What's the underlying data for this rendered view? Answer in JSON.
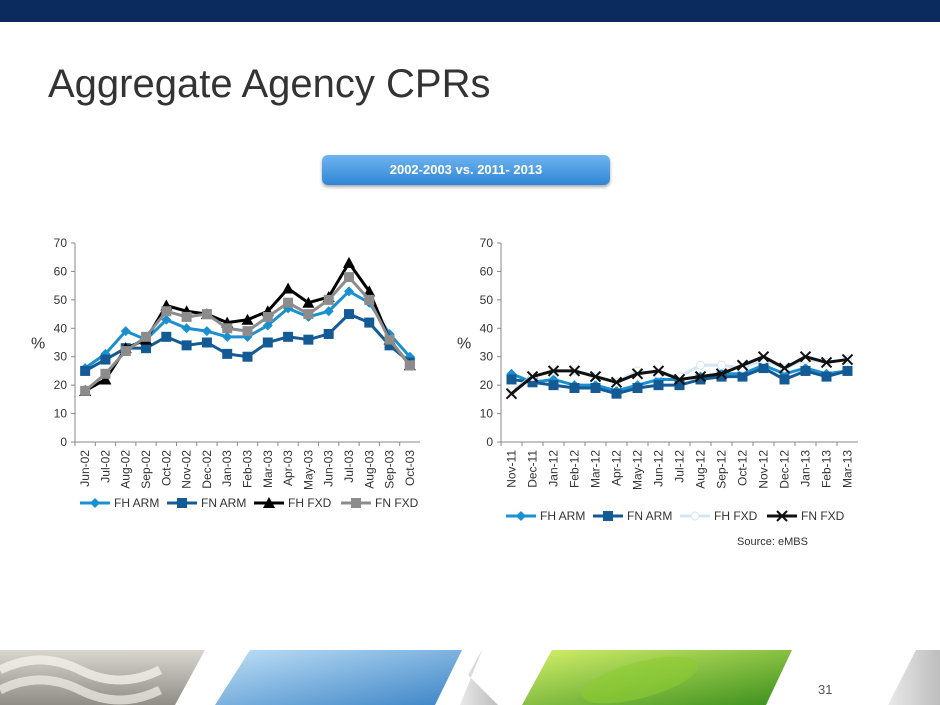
{
  "slide": {
    "title": "Aggregate Agency CPRs",
    "subtitle_badge": "2002-2003 vs. 2011- 2013",
    "source": "Source: eMBS",
    "page_number": "31"
  },
  "colors": {
    "header_bar": "#0b2a5e",
    "FH ARM": "#1a90d0",
    "FN ARM": "#145a94",
    "FH FXD": "#000000",
    "FN FXD": "#8c8c8c",
    "FN FXD_right": "#111111",
    "FH FXD_right": "#d4e6f4"
  },
  "chart_data": [
    {
      "type": "line",
      "title": "",
      "ylabel": "%",
      "xlabel": "",
      "ylim": [
        0,
        70
      ],
      "yticks": [
        0,
        10,
        20,
        30,
        40,
        50,
        60,
        70
      ],
      "grid": false,
      "legend": "bottom",
      "categories": [
        "Jun-02",
        "Jul-02",
        "Aug-02",
        "Sep-02",
        "Oct-02",
        "Nov-02",
        "Dec-02",
        "Jan-03",
        "Feb-03",
        "Mar-03",
        "Apr-03",
        "May-03",
        "Jun-03",
        "Jul-03",
        "Aug-03",
        "Sep-03",
        "Oct-03"
      ],
      "series": [
        {
          "name": "FH ARM",
          "marker": "diamond",
          "values": [
            26,
            31,
            39,
            36,
            43,
            40,
            39,
            37,
            37,
            41,
            47,
            44,
            46,
            53,
            49,
            38,
            30
          ]
        },
        {
          "name": "FN ARM",
          "marker": "square",
          "values": [
            25,
            29,
            33,
            33,
            37,
            34,
            35,
            31,
            30,
            35,
            37,
            36,
            38,
            45,
            42,
            34,
            28
          ]
        },
        {
          "name": "FH FXD",
          "marker": "triangle",
          "values": [
            18,
            22,
            33,
            36,
            48,
            46,
            45,
            42,
            43,
            46,
            54,
            49,
            51,
            63,
            53,
            36,
            27
          ]
        },
        {
          "name": "FN FXD",
          "marker": "square",
          "values": [
            18,
            24,
            32,
            37,
            46,
            44,
            45,
            40,
            39,
            44,
            49,
            45,
            50,
            58,
            50,
            36,
            27
          ]
        }
      ]
    },
    {
      "type": "line",
      "title": "",
      "ylabel": "%",
      "xlabel": "",
      "ylim": [
        0,
        70
      ],
      "yticks": [
        0,
        10,
        20,
        30,
        40,
        50,
        60,
        70
      ],
      "grid": false,
      "legend": "bottom",
      "categories": [
        "Nov-11",
        "Dec-11",
        "Jan-12",
        "Feb-12",
        "Mar-12",
        "Apr-12",
        "May-12",
        "Jun-12",
        "Jul-12",
        "Aug-12",
        "Sep-12",
        "Oct-12",
        "Nov-12",
        "Dec-12",
        "Jan-13",
        "Feb-13",
        "Mar-13"
      ],
      "series": [
        {
          "name": "FH ARM",
          "marker": "diamond",
          "values": [
            24,
            21,
            22,
            20,
            20,
            18,
            20,
            22,
            22,
            23,
            24,
            24,
            27,
            24,
            26,
            24,
            25
          ]
        },
        {
          "name": "FN ARM",
          "marker": "square",
          "values": [
            22,
            21,
            20,
            19,
            19,
            17,
            19,
            20,
            20,
            22,
            23,
            23,
            26,
            22,
            25,
            23,
            25
          ]
        },
        {
          "name": "FH FXD",
          "marker": "circle",
          "values": [
            18,
            23,
            25,
            25,
            23,
            21,
            25,
            24,
            23,
            27,
            27,
            26,
            29,
            26,
            29,
            28,
            29
          ]
        },
        {
          "name": "FN FXD",
          "marker": "x",
          "values": [
            17,
            23,
            25,
            25,
            23,
            21,
            24,
            25,
            22,
            23,
            24,
            27,
            30,
            26,
            30,
            28,
            29
          ]
        }
      ]
    }
  ]
}
